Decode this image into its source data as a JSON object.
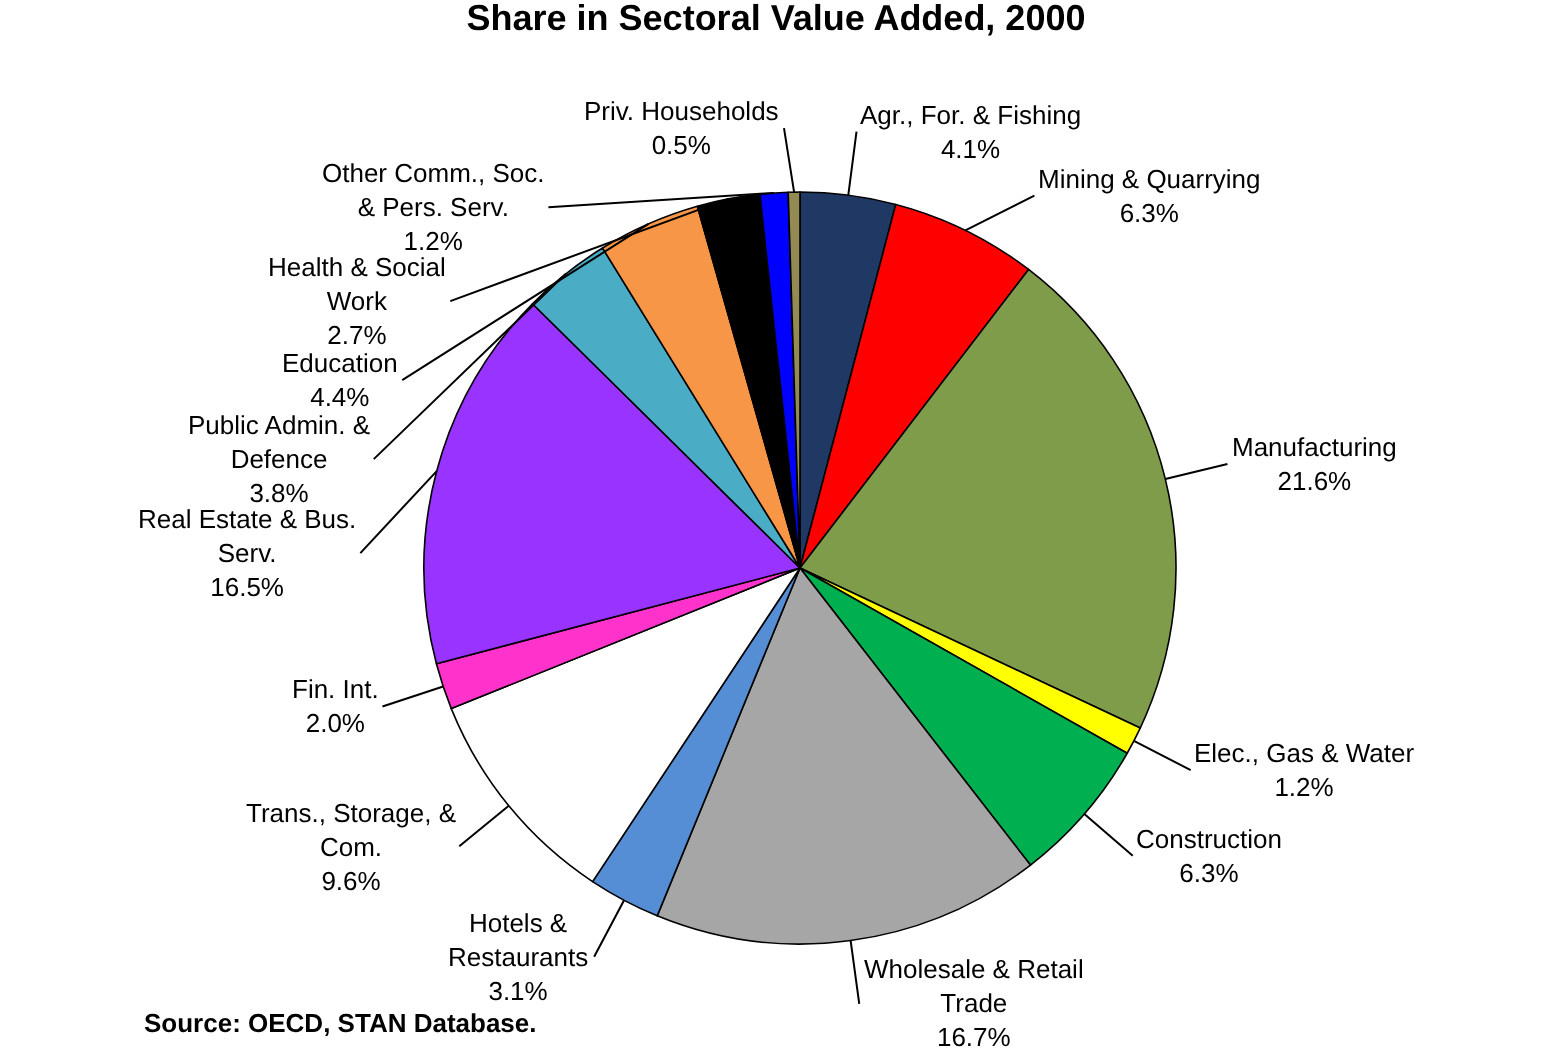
{
  "chart_data": {
    "type": "pie",
    "title": "Share in Sectoral Value Added, 2000",
    "categories": [
      "Agr., For. & Fishing",
      "Mining & Quarrying",
      "Manufacturing",
      "Elec., Gas & Water",
      "Construction",
      "Wholesale & Retail\nTrade",
      "Hotels &\nRestaurants",
      "Trans., Storage, &\nCom.",
      "Fin. Int.",
      "Real Estate & Bus.\nServ.",
      "Public Admin. &\nDefence",
      "Education",
      "Health & Social\nWork",
      "Other Comm., Soc.\n& Pers. Serv.",
      "Priv. Households"
    ],
    "values": [
      4.1,
      6.3,
      21.6,
      1.2,
      6.3,
      16.7,
      3.1,
      9.6,
      2.0,
      16.5,
      3.8,
      4.4,
      2.7,
      1.2,
      0.5
    ],
    "value_labels": [
      "4.1%",
      "6.3%",
      "21.6%",
      "1.2%",
      "6.3%",
      "16.7%",
      "3.1%",
      "9.6%",
      "2.0%",
      "16.5%",
      "3.8%",
      "4.4%",
      "2.7%",
      "1.2%",
      "0.5%"
    ],
    "colors": [
      "#1f3864",
      "#ff0000",
      "#7f9c4a",
      "#ffff00",
      "#00b050",
      "#a6a6a6",
      "#558ed5",
      "#ffffff",
      "#ff33cc",
      "#9933ff",
      "#4bacc6",
      "#f79646",
      "#000000",
      "#0000ff",
      "#948a54"
    ],
    "annotations": [
      "Source: OECD, STAN Database."
    ]
  }
}
